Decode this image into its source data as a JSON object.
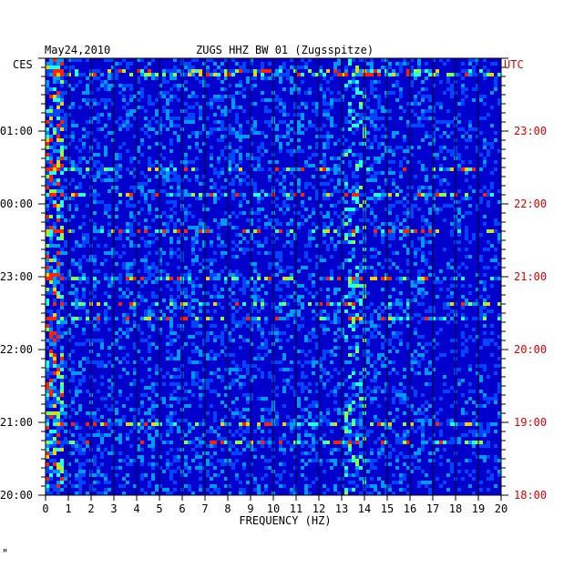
{
  "header": {
    "date": "May24,2010",
    "station": "ZUGS HHZ BW 01 (Zugsspitze)"
  },
  "chart_data": {
    "type": "heatmap",
    "title": "ZUGS HHZ BW 01 (Zugsspitze)",
    "xlabel": "FREQUENCY (HZ)",
    "xlim": [
      0,
      20
    ],
    "x_ticks": [
      "0",
      "1",
      "2",
      "3",
      "4",
      "5",
      "6",
      "7",
      "8",
      "9",
      "10",
      "11",
      "12",
      "13",
      "14",
      "15",
      "16",
      "17",
      "18",
      "19",
      "20"
    ],
    "left_axis": {
      "label": "CES",
      "ticks": [
        "01:00",
        "00:00",
        "23:00",
        "22:00",
        "21:00",
        "20:00"
      ]
    },
    "right_axis": {
      "label": "UTC",
      "ticks": [
        "23:00",
        "22:00",
        "21:00",
        "20:00",
        "19:00",
        "18:00"
      ]
    },
    "time_span_hours": 6,
    "colors": {
      "background": "#0000cc",
      "right_axis_text": "#dd0000",
      "axis": "#000000"
    },
    "features": {
      "low_frequency_energy_hz": [
        0,
        0.8
      ],
      "band_energy_hz": [
        13.2,
        14.0
      ]
    }
  },
  "footnote_mark": "\""
}
